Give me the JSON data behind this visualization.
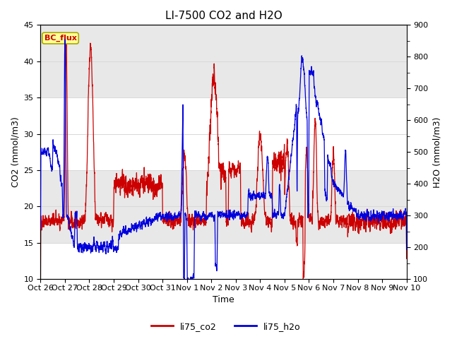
{
  "title": "LI-7500 CO2 and H2O",
  "xlabel": "Time",
  "ylabel_left": "CO2 (mmol/m3)",
  "ylabel_right": "H2O (mmol/m3)",
  "ylim_left": [
    10,
    45
  ],
  "ylim_right": [
    100,
    900
  ],
  "yticks_left": [
    10,
    15,
    20,
    25,
    30,
    35,
    40,
    45
  ],
  "yticks_right": [
    100,
    200,
    300,
    400,
    500,
    600,
    700,
    800,
    900
  ],
  "xtick_labels": [
    "Oct 26",
    "Oct 27",
    "Oct 28",
    "Oct 29",
    "Oct 30",
    "Oct 31",
    "Nov 1",
    "Nov 2",
    "Nov 3",
    "Nov 4",
    "Nov 5",
    "Nov 6",
    "Nov 7",
    "Nov 8",
    "Nov 9",
    "Nov 10"
  ],
  "legend_labels": [
    "li75_co2",
    "li75_h2o"
  ],
  "co2_color": "#cc0000",
  "h2o_color": "#0000dd",
  "annotation_text": "BC_flux",
  "annotation_color": "#cc0000",
  "annotation_bg": "#ffff99",
  "annotation_edge": "#aaaa00",
  "bg_color": "#ffffff",
  "band_color": "#e8e8e8",
  "grid_color": "#d8d8d8",
  "title_fontsize": 11,
  "label_fontsize": 9,
  "tick_fontsize": 8,
  "n_days": 15
}
